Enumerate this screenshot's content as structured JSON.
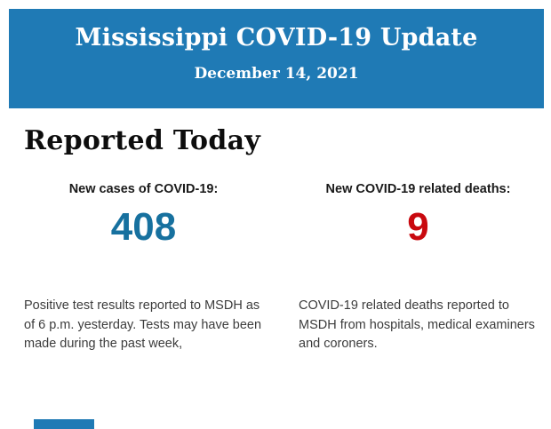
{
  "header": {
    "title": "Mississippi COVID-19 Update",
    "date": "December 14, 2021",
    "bg_color": "#1f7ab5",
    "text_color": "#ffffff"
  },
  "main": {
    "section_title": "Reported Today",
    "stats": [
      {
        "label": "New cases of COVID-19:",
        "value": "408",
        "value_color": "#17719f",
        "description": "Positive test results reported to MSDH as of 6 p.m. yesterday. Tests may have been made during the past week,"
      },
      {
        "label": "New COVID-19 related deaths:",
        "value": "9",
        "value_color": "#c9090f",
        "description": "COVID-19 related deaths reported to MSDH from hospitals, medical examiners and coroners."
      }
    ]
  },
  "footer": {
    "partial_bar_color": "#1f7ab5"
  }
}
